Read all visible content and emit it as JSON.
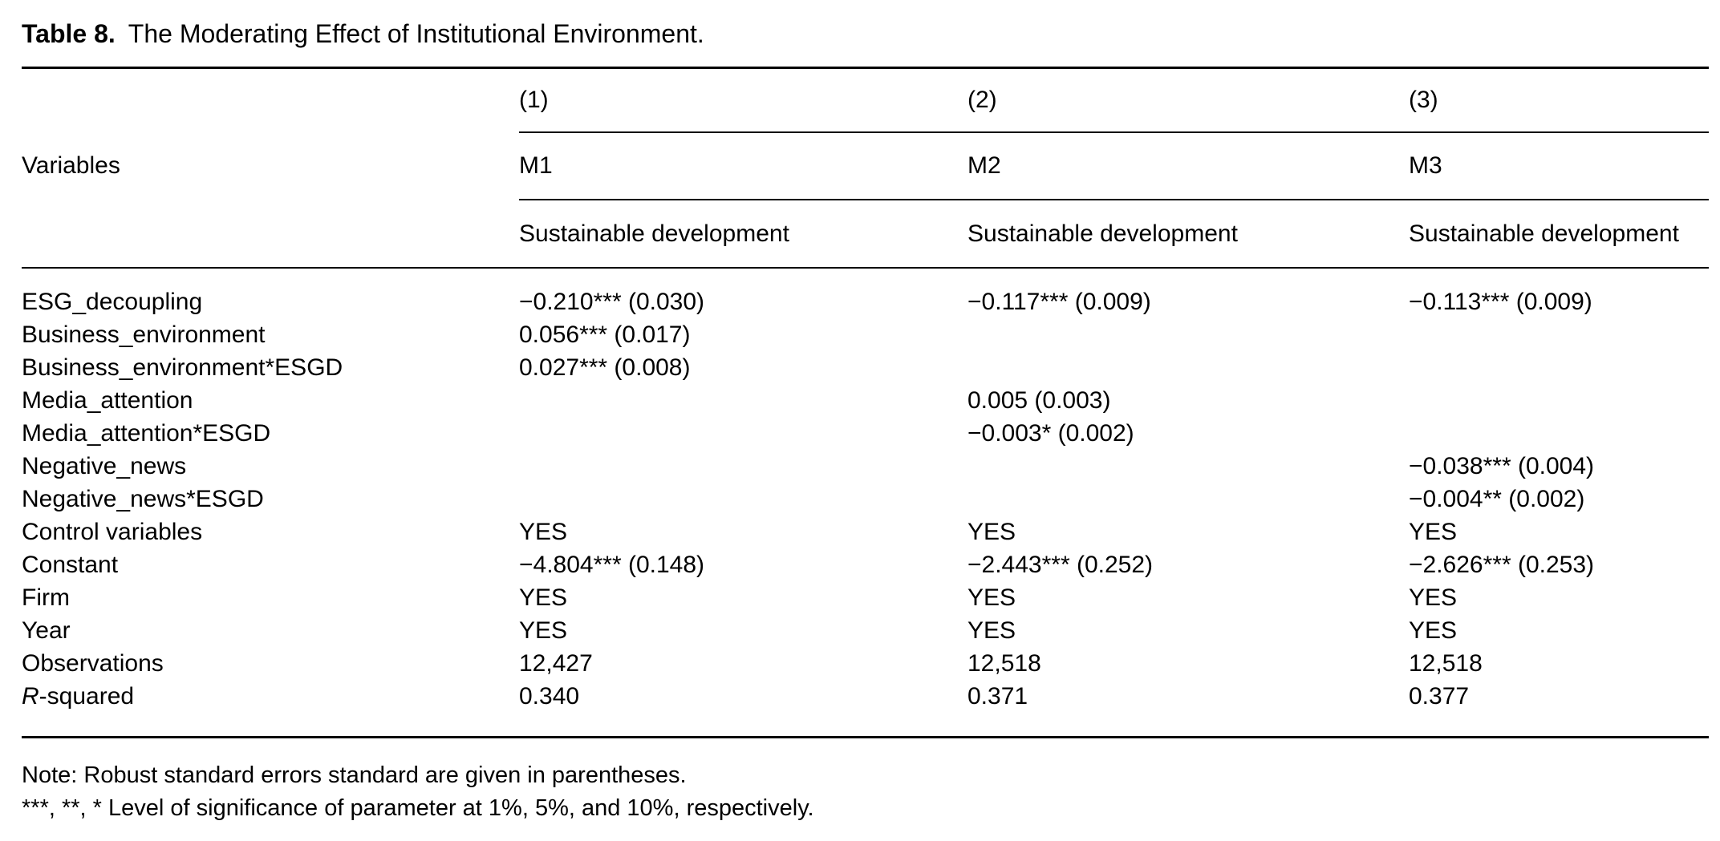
{
  "title": {
    "label": "Table 8.",
    "text": "The Moderating Effect of Institutional Environment."
  },
  "table": {
    "header": {
      "variables_label": "Variables",
      "model_numbers": [
        "(1)",
        "(2)",
        "(3)"
      ],
      "model_names": [
        "M1",
        "M2",
        "M3"
      ],
      "dependent_variable": [
        "Sustainable development",
        "Sustainable development",
        "Sustainable development"
      ]
    },
    "rows": [
      {
        "label": "ESG_decoupling",
        "m1": "−0.210*** (0.030)",
        "m2": "−0.117*** (0.009)",
        "m3": "−0.113*** (0.009)"
      },
      {
        "label": "Business_environment",
        "m1": "0.056*** (0.017)",
        "m2": "",
        "m3": ""
      },
      {
        "label": "Business_environment*ESGD",
        "m1": "0.027*** (0.008)",
        "m2": "",
        "m3": ""
      },
      {
        "label": "Media_attention",
        "m1": "",
        "m2": "0.005 (0.003)",
        "m3": ""
      },
      {
        "label": "Media_attention*ESGD",
        "m1": "",
        "m2": "−0.003* (0.002)",
        "m3": ""
      },
      {
        "label": "Negative_news",
        "m1": "",
        "m2": "",
        "m3": "−0.038*** (0.004)"
      },
      {
        "label": "Negative_news*ESGD",
        "m1": "",
        "m2": "",
        "m3": "−0.004** (0.002)"
      },
      {
        "label": "Control variables",
        "m1": "YES",
        "m2": "YES",
        "m3": "YES"
      },
      {
        "label": "Constant",
        "m1": "−4.804*** (0.148)",
        "m2": "−2.443*** (0.252)",
        "m3": "−2.626*** (0.253)"
      },
      {
        "label": "Firm",
        "m1": "YES",
        "m2": "YES",
        "m3": "YES"
      },
      {
        "label": "Year",
        "m1": "YES",
        "m2": "YES",
        "m3": "YES"
      },
      {
        "label": "Observations",
        "m1": "12,427",
        "m2": "12,518",
        "m3": "12,518"
      },
      {
        "label_italic": "R",
        "label_rest": "-squared",
        "m1": "0.340",
        "m2": "0.371",
        "m3": "0.377"
      }
    ]
  },
  "notes": [
    "Note: Robust standard errors standard are given in parentheses.",
    "***, **, * Level of significance of parameter at 1%, 5%, and 10%, respectively."
  ]
}
